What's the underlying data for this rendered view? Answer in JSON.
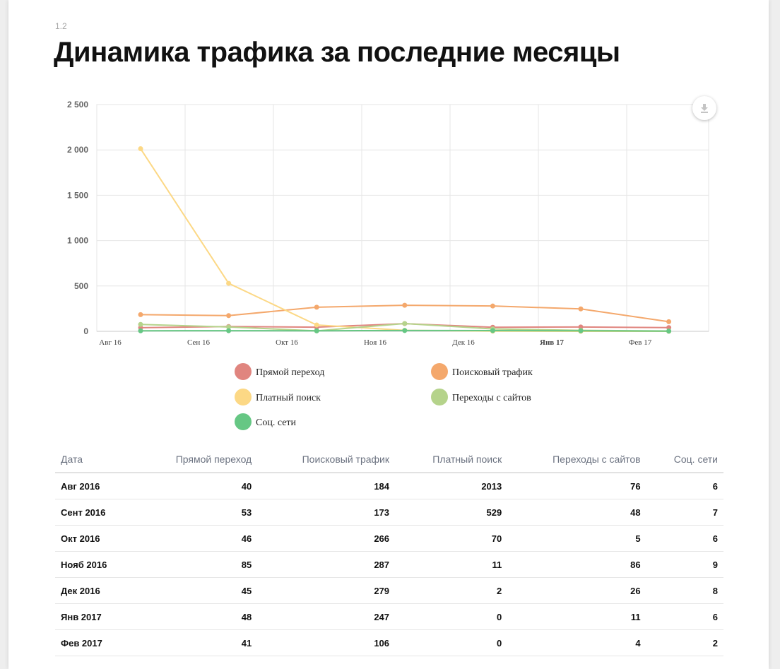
{
  "section_number": "1.2",
  "title": "Динамика трафика за последние месяцы",
  "download_icon": "download-icon",
  "chart_data": {
    "type": "line",
    "title": "",
    "xlabel": "",
    "ylabel": "",
    "x_tick_labels": [
      "Авг 16",
      "Сен 16",
      "Окт 16",
      "Ноя 16",
      "Дек 16",
      "Янв 17",
      "Фев 17"
    ],
    "y_tick_labels": [
      "0",
      "500",
      "1 000",
      "1 500",
      "2 000",
      "2 500"
    ],
    "y_ticks": [
      0,
      500,
      1000,
      1500,
      2000,
      2500
    ],
    "ylim": [
      0,
      2500
    ],
    "grid": true,
    "legend_position": "bottom",
    "x": [
      "2016-08-15",
      "2016-09-15",
      "2016-10-15",
      "2016-11-15",
      "2016-12-15",
      "2017-01-15",
      "2017-02-15"
    ],
    "series": [
      {
        "name": "Прямой переход",
        "color": "#e0857f",
        "values": [
          40,
          53,
          46,
          85,
          45,
          48,
          41
        ]
      },
      {
        "name": "Поисковый трафик",
        "color": "#f4a86c",
        "values": [
          184,
          173,
          266,
          287,
          279,
          247,
          106
        ]
      },
      {
        "name": "Платный поиск",
        "color": "#fcd885",
        "values": [
          2013,
          529,
          70,
          11,
          2,
          0,
          0
        ]
      },
      {
        "name": "Переходы с сайтов",
        "color": "#b5d38b",
        "values": [
          76,
          48,
          5,
          86,
          26,
          11,
          4
        ]
      },
      {
        "name": "Соц. сети",
        "color": "#66c784",
        "values": [
          6,
          7,
          6,
          9,
          8,
          6,
          2
        ]
      }
    ]
  },
  "table": {
    "headers": [
      "Дата",
      "Прямой переход",
      "Поисковый трафик",
      "Платный поиск",
      "Переходы с сайтов",
      "Соц. сети"
    ],
    "rows": [
      [
        "Авг 2016",
        "40",
        "184",
        "2013",
        "76",
        "6"
      ],
      [
        "Сент 2016",
        "53",
        "173",
        "529",
        "48",
        "7"
      ],
      [
        "Окт 2016",
        "46",
        "266",
        "70",
        "5",
        "6"
      ],
      [
        "Нояб 2016",
        "85",
        "287",
        "11",
        "86",
        "9"
      ],
      [
        "Дек 2016",
        "45",
        "279",
        "2",
        "26",
        "8"
      ],
      [
        "Янв 2017",
        "48",
        "247",
        "0",
        "11",
        "6"
      ],
      [
        "Фев 2017",
        "41",
        "106",
        "0",
        "4",
        "2"
      ]
    ]
  }
}
